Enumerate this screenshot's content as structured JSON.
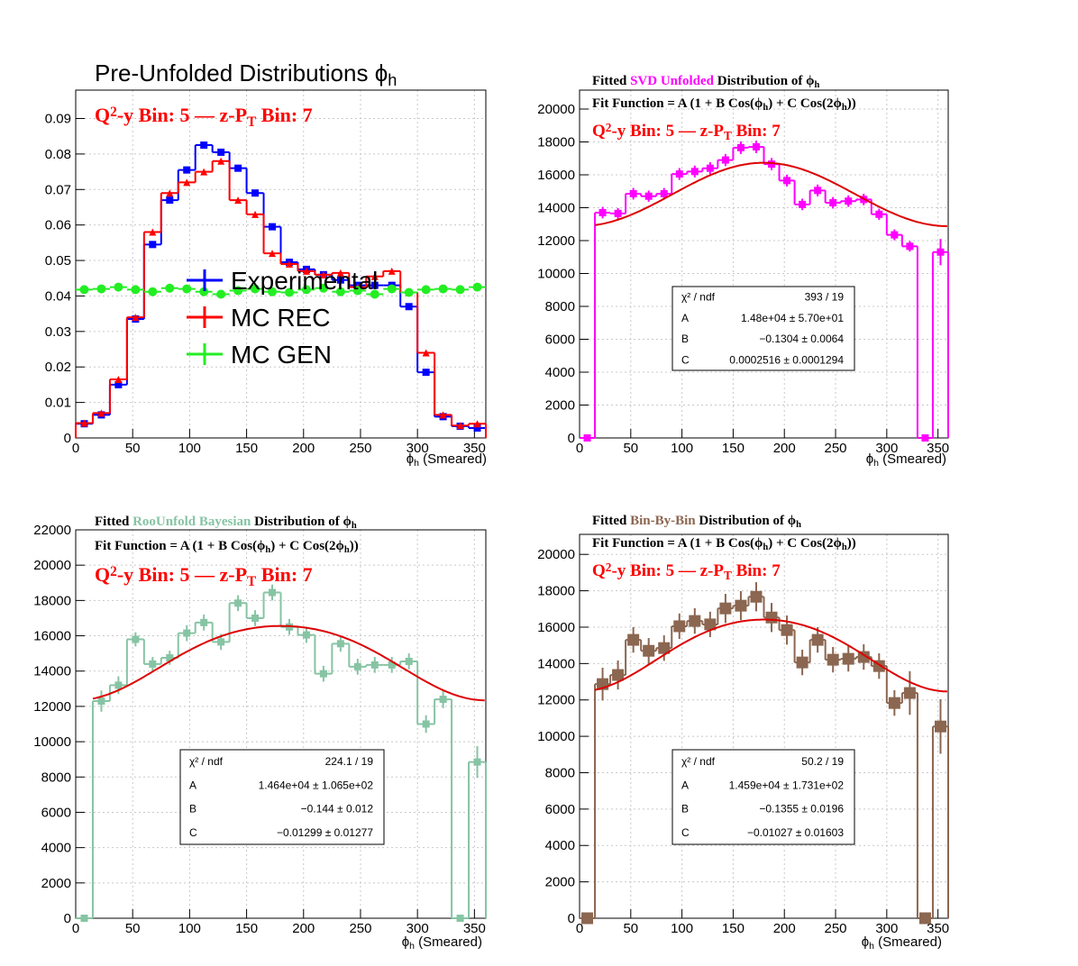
{
  "chart_data": [
    {
      "type": "histogram",
      "title": [
        {
          "text": "Pre-Unfolded Distributions ϕ"
        },
        {
          "text": "h",
          "sub": true
        }
      ],
      "subtitle": [
        {
          "text": "Q"
        },
        {
          "text": "2",
          "sup": true
        },
        {
          "text": "-y Bin: 5  —  z-P"
        },
        {
          "text": "T",
          "sub": true
        },
        {
          "text": " Bin: 7"
        }
      ],
      "xlabel": [
        {
          "text": "ϕ"
        },
        {
          "text": "h",
          "sub": true
        },
        {
          "text": " (Smeared)"
        }
      ],
      "bins": [
        0,
        15,
        30,
        45,
        60,
        75,
        90,
        105,
        120,
        135,
        150,
        165,
        180,
        195,
        210,
        225,
        240,
        255,
        270,
        285,
        300,
        315,
        330,
        345,
        360
      ],
      "xlim": [
        0,
        360
      ],
      "xticks": [
        0,
        50,
        100,
        150,
        200,
        250,
        300,
        350
      ],
      "ylim": [
        0,
        0.098
      ],
      "yticks": [
        0,
        0.01,
        0.02,
        0.03,
        0.04,
        0.05,
        0.06,
        0.07,
        0.08,
        0.09
      ],
      "grid": true,
      "series": [
        {
          "name": "Experimental",
          "color": "#0000ff",
          "marker": "square",
          "values": [
            0.004,
            0.0065,
            0.015,
            0.0335,
            0.0545,
            0.067,
            0.0755,
            0.0825,
            0.0805,
            0.076,
            0.069,
            0.0595,
            0.0495,
            0.0475,
            0.046,
            0.0445,
            0.043,
            0.043,
            0.043,
            0.037,
            0.0185,
            0.006,
            0.0033,
            0.0028
          ]
        },
        {
          "name": "MC REC",
          "color": "#ff0000",
          "marker": "triangle",
          "values": [
            0.0042,
            0.007,
            0.0165,
            0.034,
            0.058,
            0.069,
            0.072,
            0.075,
            0.078,
            0.067,
            0.063,
            0.052,
            0.049,
            0.047,
            0.046,
            0.0465,
            0.0425,
            0.0455,
            0.047,
            0.041,
            0.024,
            0.0065,
            0.0035,
            0.004
          ]
        },
        {
          "name": "MC GEN",
          "color": "#22ee22",
          "marker": "circle",
          "nostep": true,
          "values": [
            0.0418,
            0.042,
            0.0425,
            0.0418,
            0.0412,
            0.0422,
            0.042,
            0.0412,
            0.0405,
            0.0415,
            0.042,
            0.0412,
            0.041,
            0.0418,
            0.0422,
            0.0412,
            0.0415,
            0.0405,
            0.042,
            0.041,
            0.0418,
            0.042,
            0.0418,
            0.0425
          ]
        }
      ]
    },
    {
      "type": "histogram",
      "title": [
        {
          "text": "Fitted  "
        },
        {
          "text": "SVD Unfolded",
          "color": "#ff00ff"
        },
        {
          "text": " Distribution of  ϕ"
        },
        {
          "text": "h",
          "sub": true
        }
      ],
      "fit_function": [
        {
          "text": "Fit Function = A (1 + B Cos(ϕ"
        },
        {
          "text": "h",
          "sub": true
        },
        {
          "text": ") + C Cos(2ϕ"
        },
        {
          "text": "h",
          "sub": true
        },
        {
          "text": "))"
        }
      ],
      "subtitle": [
        {
          "text": "Q"
        },
        {
          "text": "2",
          "sup": true
        },
        {
          "text": "-y Bin: 5  —  z-P"
        },
        {
          "text": "T",
          "sub": true
        },
        {
          "text": " Bin: 7"
        }
      ],
      "xlabel": [
        {
          "text": "ϕ"
        },
        {
          "text": "h",
          "sub": true
        },
        {
          "text": " (Smeared)"
        }
      ],
      "bins": [
        0,
        15,
        30,
        45,
        60,
        75,
        90,
        105,
        120,
        135,
        150,
        165,
        180,
        195,
        210,
        225,
        240,
        255,
        270,
        285,
        300,
        315,
        330,
        345,
        360
      ],
      "xlim": [
        0,
        360
      ],
      "xticks": [
        0,
        50,
        100,
        150,
        200,
        250,
        300,
        350
      ],
      "ylim": [
        0,
        21150
      ],
      "yticks": [
        0,
        2000,
        4000,
        6000,
        8000,
        10000,
        12000,
        14000,
        16000,
        18000,
        20000
      ],
      "grid": true,
      "series": [
        {
          "color": "#ff00ff",
          "marker": "square",
          "values": [
            0,
            13700,
            13650,
            14850,
            14700,
            14850,
            16050,
            16200,
            16400,
            16900,
            17650,
            17700,
            16650,
            15650,
            14200,
            15050,
            14300,
            14400,
            14500,
            13600,
            12350,
            11650,
            0,
            11300
          ],
          "errors": [
            0,
            350,
            330,
            350,
            340,
            350,
            360,
            360,
            370,
            370,
            380,
            380,
            370,
            360,
            350,
            360,
            350,
            350,
            350,
            340,
            330,
            320,
            0,
            800
          ]
        }
      ],
      "fit": {
        "color": "#dd0000",
        "xlim": [
          15,
          360
        ]
      },
      "stats": [
        {
          "name": "χ² / ndf",
          "text": "393 / 19"
        },
        {
          "name": "A",
          "value": 14800,
          "label": "1.48e+04  ± 5.70e+01"
        },
        {
          "name": "B",
          "value": -0.1304,
          "label": "−0.1304  ± 0.0064"
        },
        {
          "name": "C",
          "value": 0.0002516,
          "label": "0.0002516  ± 0.0001294"
        }
      ]
    },
    {
      "type": "histogram",
      "title": [
        {
          "text": "Fitted  "
        },
        {
          "text": "RooUnfold Bayesian",
          "color": "#86c4a4"
        },
        {
          "text": " Distribution of  ϕ"
        },
        {
          "text": "h",
          "sub": true
        }
      ],
      "fit_function": [
        {
          "text": "Fit Function = A (1 + B Cos(ϕ"
        },
        {
          "text": "h",
          "sub": true
        },
        {
          "text": ") + C Cos(2ϕ"
        },
        {
          "text": "h",
          "sub": true
        },
        {
          "text": "))"
        }
      ],
      "subtitle": [
        {
          "text": "Q"
        },
        {
          "text": "2",
          "sup": true
        },
        {
          "text": "-y Bin: 5  —  z-P"
        },
        {
          "text": "T",
          "sub": true
        },
        {
          "text": " Bin: 7"
        }
      ],
      "xlabel": [
        {
          "text": "ϕ"
        },
        {
          "text": "h",
          "sub": true
        },
        {
          "text": " (Smeared)"
        }
      ],
      "bins": [
        0,
        15,
        30,
        45,
        60,
        75,
        90,
        105,
        120,
        135,
        150,
        165,
        180,
        195,
        210,
        225,
        240,
        255,
        270,
        285,
        300,
        315,
        330,
        345,
        360
      ],
      "xlim": [
        0,
        360
      ],
      "xticks": [
        0,
        50,
        100,
        150,
        200,
        250,
        300,
        350
      ],
      "ylim": [
        0,
        22000
      ],
      "yticks": [
        0,
        2000,
        4000,
        6000,
        8000,
        10000,
        12000,
        14000,
        16000,
        18000,
        20000,
        22000
      ],
      "grid": true,
      "series": [
        {
          "color": "#86c4a4",
          "marker": "square",
          "values": [
            0,
            12300,
            13200,
            15800,
            14400,
            14750,
            16150,
            16750,
            15650,
            17850,
            17000,
            18450,
            16500,
            16050,
            13850,
            15550,
            14250,
            14350,
            14350,
            14550,
            11000,
            12400,
            0,
            8850
          ],
          "errors": [
            0,
            600,
            500,
            400,
            400,
            400,
            450,
            450,
            450,
            450,
            450,
            450,
            450,
            450,
            450,
            450,
            450,
            450,
            450,
            450,
            500,
            500,
            0,
            900
          ]
        }
      ],
      "fit": {
        "color": "#dd0000",
        "xlim": [
          15,
          360
        ]
      },
      "stats": [
        {
          "name": "χ² / ndf",
          "text": "224.1 / 19"
        },
        {
          "name": "A",
          "value": 14640,
          "label": "1.464e+04 ± 1.065e+02"
        },
        {
          "name": "B",
          "value": -0.144,
          "label": "−0.144 ± 0.012"
        },
        {
          "name": "C",
          "value": -0.01299,
          "label": "−0.01299 ± 0.01277"
        }
      ]
    },
    {
      "type": "histogram",
      "title": [
        {
          "text": "Fitted  "
        },
        {
          "text": "Bin-By-Bin",
          "color": "#8b6650"
        },
        {
          "text": " Distribution of  ϕ"
        },
        {
          "text": "h",
          "sub": true
        }
      ],
      "fit_function": [
        {
          "text": "Fit Function = A (1 + B Cos(ϕ"
        },
        {
          "text": "h",
          "sub": true
        },
        {
          "text": ") + C Cos(2ϕ"
        },
        {
          "text": "h",
          "sub": true
        },
        {
          "text": "))"
        }
      ],
      "subtitle": [
        {
          "text": "Q"
        },
        {
          "text": "2",
          "sup": true
        },
        {
          "text": "-y Bin: 5  —  z-P"
        },
        {
          "text": "T",
          "sub": true
        },
        {
          "text": " Bin: 7"
        }
      ],
      "xlabel": [
        {
          "text": "ϕ"
        },
        {
          "text": "h",
          "sub": true
        },
        {
          "text": " (Smeared)"
        }
      ],
      "bins": [
        0,
        15,
        30,
        45,
        60,
        75,
        90,
        105,
        120,
        135,
        150,
        165,
        180,
        195,
        210,
        225,
        240,
        255,
        270,
        285,
        300,
        315,
        330,
        345,
        360
      ],
      "xlim": [
        0,
        360
      ],
      "xticks": [
        0,
        50,
        100,
        150,
        200,
        250,
        300,
        350
      ],
      "ylim": [
        0,
        21100
      ],
      "yticks": [
        0,
        2000,
        4000,
        6000,
        8000,
        10000,
        12000,
        14000,
        16000,
        18000,
        20000
      ],
      "grid": true,
      "series": [
        {
          "color": "#8b6650",
          "marker": "bigsquare",
          "values": [
            0,
            12870,
            13370,
            15300,
            14700,
            14850,
            16050,
            16340,
            16150,
            17030,
            17180,
            17670,
            16530,
            15840,
            14060,
            15300,
            14210,
            14260,
            14360,
            13860,
            11830,
            12380,
            0,
            10540
          ],
          "errors": [
            300,
            900,
            800,
            700,
            700,
            700,
            700,
            700,
            700,
            800,
            800,
            800,
            800,
            800,
            700,
            700,
            700,
            700,
            700,
            700,
            700,
            1200,
            0,
            1500
          ]
        }
      ],
      "fit": {
        "color": "#dd0000",
        "xlim": [
          15,
          360
        ]
      },
      "stats": [
        {
          "name": "χ² / ndf",
          "text": "50.2 / 19"
        },
        {
          "name": "A",
          "value": 14590,
          "label": "1.459e+04 ± 1.731e+02"
        },
        {
          "name": "B",
          "value": -0.1355,
          "label": "−0.1355 ± 0.0196"
        },
        {
          "name": "C",
          "value": -0.01027,
          "label": "−0.01027 ± 0.01603"
        }
      ]
    }
  ]
}
